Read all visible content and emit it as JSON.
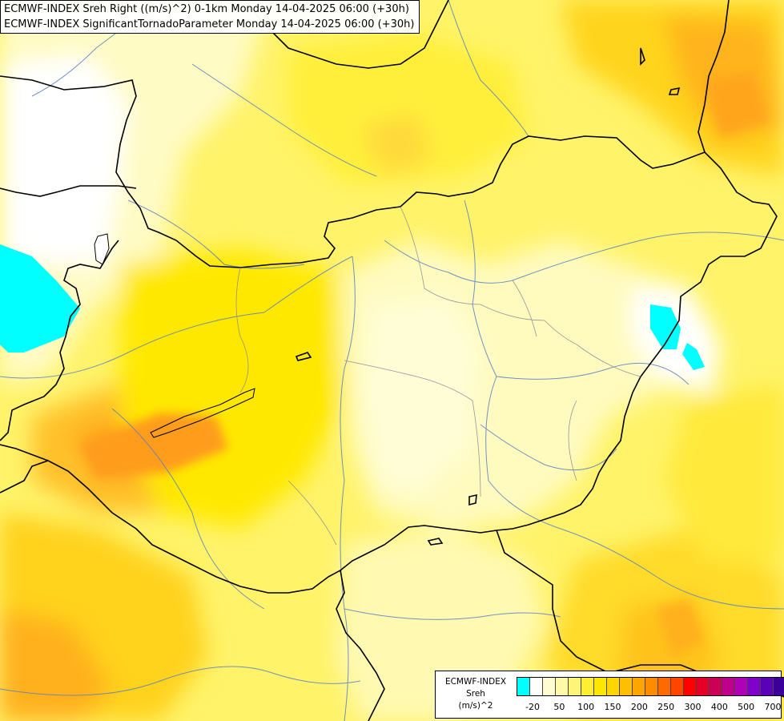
{
  "title": {
    "line1": "ECMWF-INDEX Sreh Right ((m/s)^2) 0-1km Monday 14-04-2025 06:00 (+30h)",
    "line2": "ECMWF-INDEX SignificantTornadoParameter Monday 14-04-2025 06:00 (+30h)"
  },
  "legend": {
    "source": "ECMWF-INDEX",
    "variable": "Sreh",
    "unit": "(m/s)^2",
    "colors": [
      "#00ffff",
      "#ffffff",
      "#fffccf",
      "#fff9a8",
      "#fff475",
      "#ffee33",
      "#ffe600",
      "#ffd500",
      "#ffbf00",
      "#ffa500",
      "#ff8c00",
      "#ff6a00",
      "#ff4500",
      "#ff0000",
      "#e60028",
      "#cc0055",
      "#c0008a",
      "#b000b8",
      "#8000cc",
      "#5a00b8",
      "#3a0099",
      "#1a007a"
    ],
    "ticks": [
      "-20",
      "50",
      "100",
      "150",
      "200",
      "250",
      "300",
      "400",
      "500",
      "700"
    ]
  },
  "map": {
    "max_value_color": "#ff9900",
    "min_value_color": "#00ffff"
  }
}
